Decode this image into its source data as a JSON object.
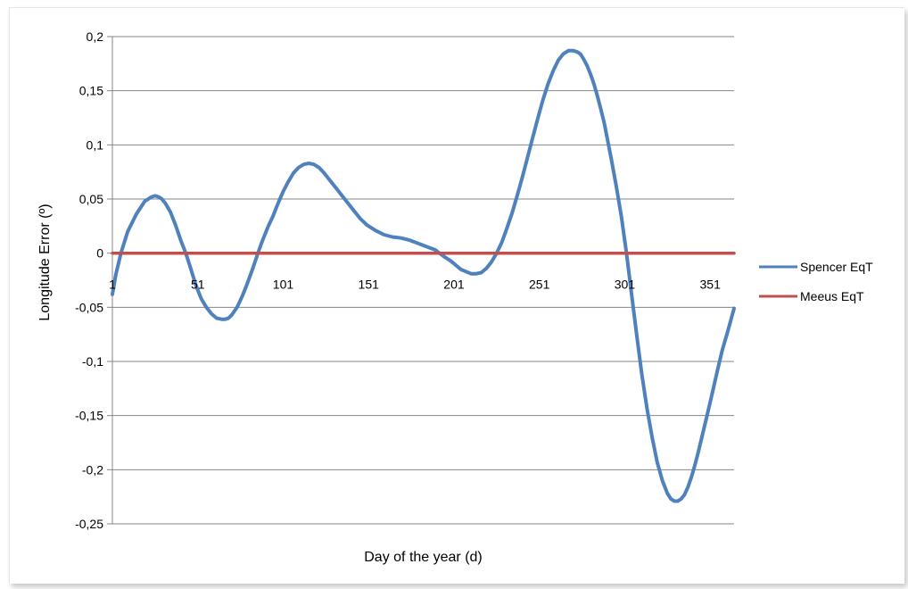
{
  "chart_data": {
    "type": "line",
    "xlabel": "Day of the year (d)",
    "ylabel": "Longitude Error (º)",
    "ylim": [
      -0.25,
      0.2
    ],
    "xlim": [
      1,
      365
    ],
    "y_ticks": [
      0.2,
      0.15,
      0.1,
      0.05,
      0,
      -0.05,
      -0.1,
      -0.15,
      -0.2,
      -0.25
    ],
    "y_tick_labels": [
      "0,2",
      "0,15",
      "0,1",
      "0,05",
      "0",
      "-0,05",
      "-0,1",
      "-0,15",
      "-0,2",
      "-0,25"
    ],
    "x_ticks": [
      1,
      51,
      101,
      151,
      201,
      251,
      301,
      351
    ],
    "x_tick_labels": [
      "1",
      "51",
      "101",
      "151",
      "201",
      "251",
      "301",
      "351"
    ],
    "grid": "horizontal",
    "legend_position": "right",
    "series": [
      {
        "name": "Spencer EqT",
        "color": "#4f81bd",
        "x": [
          1,
          3,
          6,
          10,
          15,
          20,
          24,
          26,
          28,
          30,
          32,
          35,
          38,
          41,
          44,
          46,
          48,
          50,
          53,
          56,
          59,
          62,
          65,
          67,
          69,
          71,
          74,
          77,
          80,
          83,
          86,
          88,
          90,
          92,
          95,
          98,
          101,
          104,
          107,
          110,
          113,
          116,
          119,
          122,
          125,
          128,
          131,
          134,
          138,
          142,
          146,
          150,
          155,
          160,
          165,
          170,
          175,
          180,
          185,
          190,
          195,
          199,
          202,
          205,
          208,
          211,
          214,
          217,
          220,
          223,
          226,
          229,
          232,
          235,
          238,
          241,
          244,
          247,
          250,
          253,
          256,
          259,
          262,
          265,
          268,
          271,
          273,
          275,
          277,
          279,
          281,
          283,
          285,
          287,
          289,
          291,
          293,
          296,
          299,
          302,
          305,
          308,
          311,
          314,
          317,
          320,
          323,
          326,
          328,
          330,
          332,
          334,
          336,
          338,
          340,
          342,
          344,
          346,
          349,
          352,
          355,
          358,
          361,
          365
        ],
        "y": [
          -0.038,
          -0.02,
          0.0,
          0.02,
          0.036,
          0.048,
          0.052,
          0.053,
          0.052,
          0.05,
          0.046,
          0.038,
          0.026,
          0.012,
          0.0,
          -0.01,
          -0.02,
          -0.03,
          -0.042,
          -0.05,
          -0.056,
          -0.06,
          -0.061,
          -0.061,
          -0.06,
          -0.057,
          -0.05,
          -0.04,
          -0.028,
          -0.015,
          -0.001,
          0.008,
          0.016,
          0.024,
          0.034,
          0.046,
          0.057,
          0.066,
          0.074,
          0.079,
          0.082,
          0.083,
          0.082,
          0.079,
          0.074,
          0.068,
          0.062,
          0.056,
          0.048,
          0.04,
          0.032,
          0.026,
          0.021,
          0.017,
          0.015,
          0.014,
          0.012,
          0.009,
          0.006,
          0.003,
          -0.003,
          -0.007,
          -0.011,
          -0.015,
          -0.017,
          -0.019,
          -0.019,
          -0.018,
          -0.014,
          -0.008,
          0.0,
          0.01,
          0.023,
          0.037,
          0.053,
          0.07,
          0.088,
          0.106,
          0.124,
          0.141,
          0.156,
          0.168,
          0.178,
          0.184,
          0.187,
          0.187,
          0.186,
          0.184,
          0.179,
          0.173,
          0.165,
          0.156,
          0.145,
          0.133,
          0.12,
          0.104,
          0.088,
          0.062,
          0.034,
          0.0,
          -0.038,
          -0.076,
          -0.112,
          -0.143,
          -0.17,
          -0.193,
          -0.21,
          -0.222,
          -0.227,
          -0.229,
          -0.229,
          -0.227,
          -0.223,
          -0.216,
          -0.207,
          -0.196,
          -0.184,
          -0.171,
          -0.151,
          -0.131,
          -0.11,
          -0.09,
          -0.074,
          -0.051
        ]
      },
      {
        "name": "Meeus EqT",
        "color": "#c0504d",
        "x": [
          1,
          365
        ],
        "y": [
          0,
          0
        ]
      }
    ]
  }
}
